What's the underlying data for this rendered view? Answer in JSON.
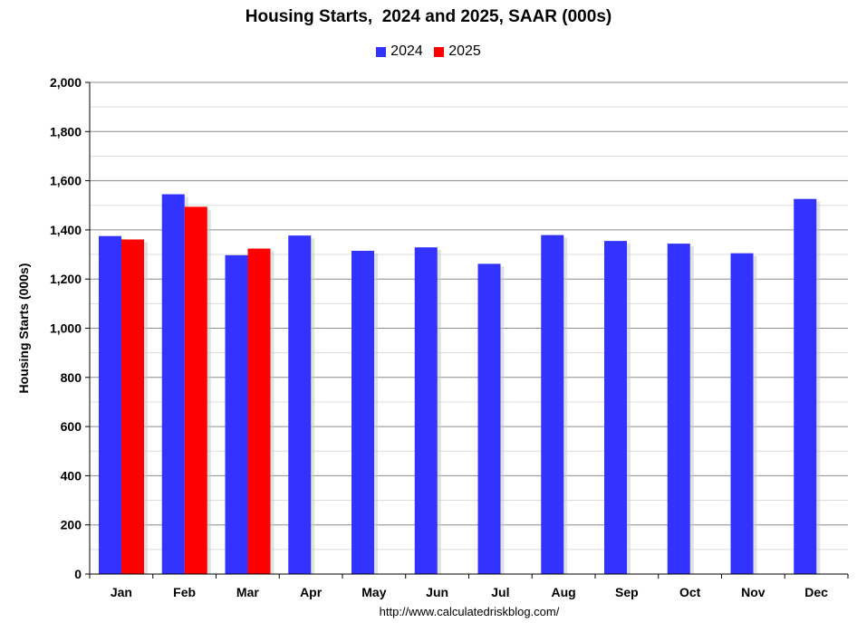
{
  "chart_data": {
    "type": "bar",
    "title": "Housing Starts,  2024 and 2025, SAAR (000s)",
    "ylabel": "Housing Starts (000s)",
    "xlabel": "",
    "ylim": [
      0,
      2000
    ],
    "y_ticks": [
      0,
      200,
      400,
      600,
      800,
      1000,
      1200,
      1400,
      1600,
      1800,
      2000
    ],
    "y_tick_labels": [
      "0",
      "200",
      "400",
      "600",
      "800",
      "1,000",
      "1,200",
      "1,400",
      "1,600",
      "1,800",
      "2,000"
    ],
    "grid": true,
    "legend_position": "top-center",
    "categories": [
      "Jan",
      "Feb",
      "Mar",
      "Apr",
      "May",
      "Jun",
      "Jul",
      "Aug",
      "Sep",
      "Oct",
      "Nov",
      "Dec"
    ],
    "series": [
      {
        "name": "2024",
        "color": "#3333FF",
        "values": [
          1375,
          1545,
          1297,
          1377,
          1315,
          1329,
          1262,
          1379,
          1355,
          1344,
          1305,
          1526
        ]
      },
      {
        "name": "2025",
        "color": "#FF0000",
        "values": [
          1361,
          1494,
          1324,
          null,
          null,
          null,
          null,
          null,
          null,
          null,
          null,
          null
        ]
      }
    ],
    "source": "http://www.calculatedriskblog.com/"
  }
}
